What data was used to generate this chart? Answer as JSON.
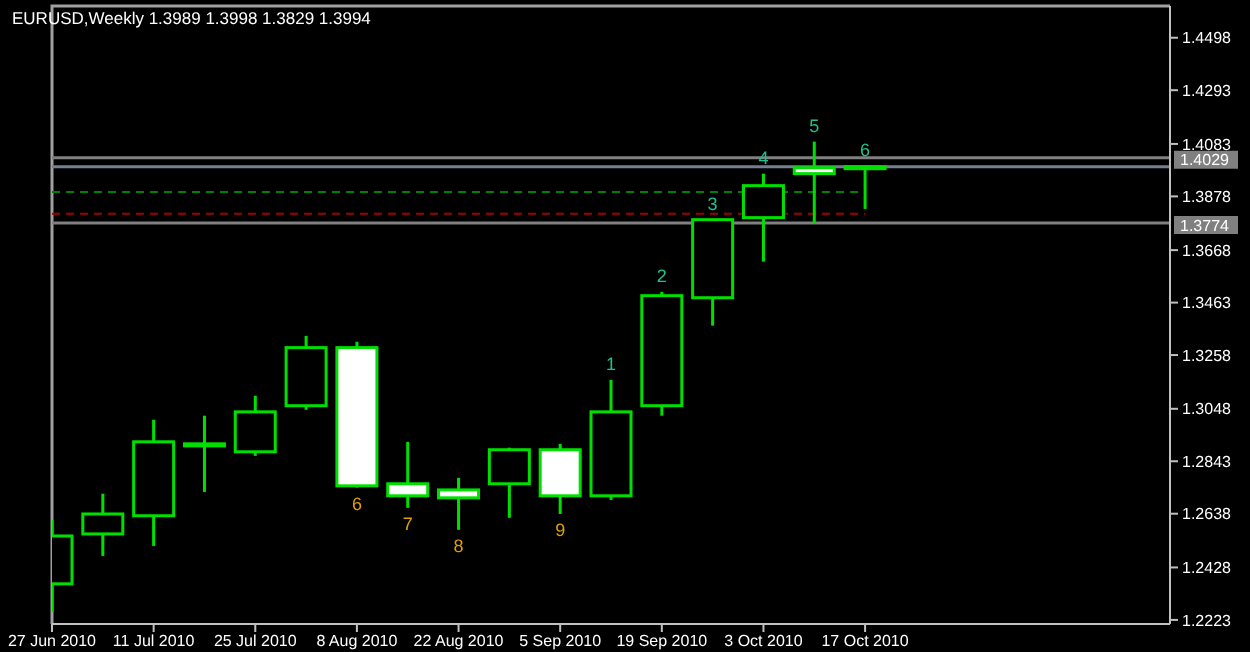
{
  "chart_data": {
    "type": "candlestick",
    "title": "EURUSD,Weekly  1.3989 1.3998 1.3829 1.3994",
    "x": [
      "2010-06-27",
      "2010-07-04",
      "2010-07-11",
      "2010-07-18",
      "2010-07-25",
      "2010-08-01",
      "2010-08-08",
      "2010-08-15",
      "2010-08-22",
      "2010-08-29",
      "2010-09-05",
      "2010-09-12",
      "2010-09-19",
      "2010-09-26",
      "2010-10-03",
      "2010-10-10",
      "2010-10-17"
    ],
    "ohlc": [
      [
        1.2364,
        1.2614,
        1.2254,
        1.2551
      ],
      [
        1.2559,
        1.2716,
        1.2473,
        1.2637
      ],
      [
        1.263,
        1.3005,
        1.2512,
        1.2919
      ],
      [
        1.2908,
        1.3021,
        1.2723,
        1.2911
      ],
      [
        1.288,
        1.3099,
        1.2864,
        1.3036
      ],
      [
        1.306,
        1.3333,
        1.3044,
        1.3287
      ],
      [
        1.3287,
        1.331,
        1.274,
        1.2747
      ],
      [
        1.2755,
        1.2919,
        1.2661,
        1.2708
      ],
      [
        1.2731,
        1.2778,
        1.2575,
        1.27
      ],
      [
        1.2755,
        1.2896,
        1.2622,
        1.2888
      ],
      [
        1.2888,
        1.2911,
        1.2637,
        1.2708
      ],
      [
        1.2708,
        1.3161,
        1.2692,
        1.3036
      ],
      [
        1.306,
        1.3505,
        1.3021,
        1.349
      ],
      [
        1.3482,
        1.3787,
        1.3373,
        1.3787
      ],
      [
        1.3795,
        1.3967,
        1.3623,
        1.392
      ],
      [
        1.399,
        1.4092,
        1.3771,
        1.3967
      ],
      [
        1.3989,
        1.3998,
        1.3829,
        1.3994
      ]
    ],
    "color": "#00e000",
    "colors": [
      "#000000",
      "#000000",
      "#000000",
      "#000000",
      "#000000",
      "#000000",
      "#ffffff",
      "#ffffff",
      "#ffffff",
      "#000000",
      "#ffffff",
      "#000000",
      "#000000",
      "#000000",
      "#000000",
      "#ffffff",
      "#000000"
    ],
    "xlim": [
      "2010-06-27",
      "2010-11-28"
    ],
    "xticks": [
      {
        "value": "2010-06-27",
        "label": "27 Jun 2010"
      },
      {
        "value": "2010-07-11",
        "label": "11 Jul 2010"
      },
      {
        "value": "2010-07-25",
        "label": "25 Jul 2010"
      },
      {
        "value": "2010-08-08",
        "label": "8 Aug 2010"
      },
      {
        "value": "2010-08-22",
        "label": "22 Aug 2010"
      },
      {
        "value": "2010-09-05",
        "label": "5 Sep 2010"
      },
      {
        "value": "2010-09-19",
        "label": "19 Sep 2010"
      },
      {
        "value": "2010-10-03",
        "label": "3 Oct 2010"
      },
      {
        "value": "2010-10-17",
        "label": "17 Oct 2010"
      }
    ],
    "ylim": [
      1.2207,
      1.4622
    ],
    "yticks": [
      1.2223,
      1.2428,
      1.2638,
      1.2843,
      1.3048,
      1.3258,
      1.3463,
      1.3668,
      1.3878,
      1.4083,
      1.4293,
      1.4498
    ],
    "ref_lines": [
      {
        "axis": "y",
        "value": 1.4029,
        "label": "1.4029",
        "color": "#808080"
      },
      {
        "axis": "y",
        "value": 1.3994,
        "color": "#708090"
      },
      {
        "axis": "y",
        "value": 1.3774,
        "label": "1.3774",
        "color": "#808080"
      },
      {
        "axis": "y",
        "value": 1.3895,
        "color": "#008000",
        "line_style": "dashed"
      },
      {
        "axis": "y",
        "value": 1.381,
        "color": "#a00000",
        "line_style": "dashed"
      }
    ],
    "annotations": [
      {
        "text": "6",
        "x": "2010-08-08",
        "y": 1.274
      },
      {
        "text": "7",
        "x": "2010-08-15",
        "y": 1.2661
      },
      {
        "text": "8",
        "x": "2010-08-22",
        "y": 1.2575
      },
      {
        "text": "9",
        "x": "2010-09-05",
        "y": 1.2637
      },
      {
        "text": "1",
        "x": "2010-09-12",
        "y": 1.3161
      },
      {
        "text": "2",
        "x": "2010-09-19",
        "y": 1.3505
      },
      {
        "text": "3",
        "x": "2010-09-26",
        "y": 1.3787
      },
      {
        "text": "4",
        "x": "2010-10-03",
        "y": 1.3967
      },
      {
        "text": "5",
        "x": "2010-10-10",
        "y": 1.4092
      },
      {
        "text": "6",
        "x": "2010-10-17",
        "y": 1.3998
      }
    ],
    "grid": false
  }
}
